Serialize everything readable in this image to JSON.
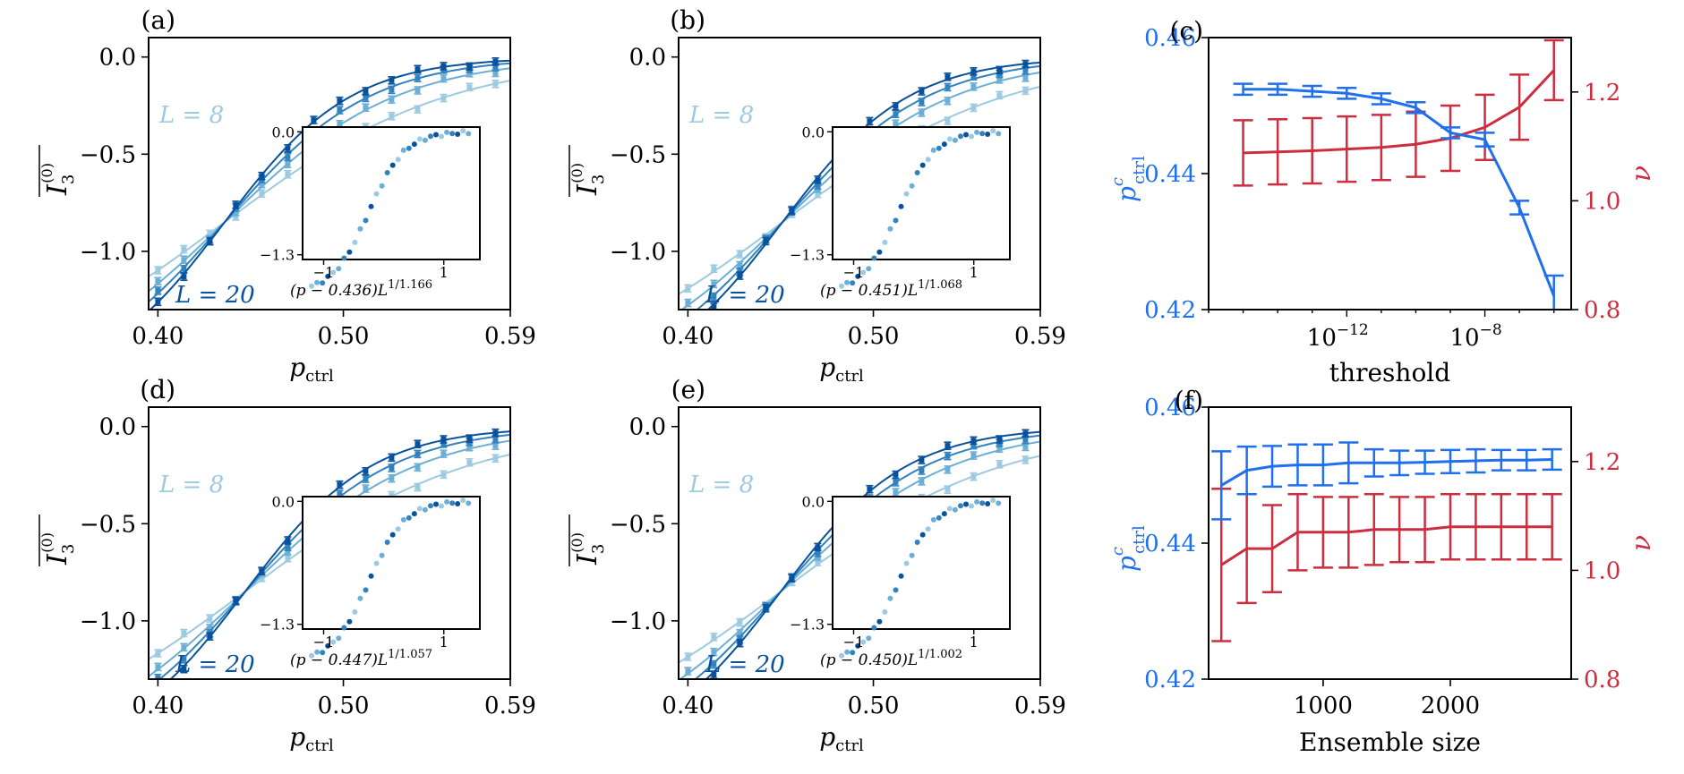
{
  "colors": {
    "L8": "#9ecae1",
    "L12": "#6baed6",
    "L16": "#3182bd",
    "L20": "#08519c",
    "pc": "#1f6fef",
    "nu": "#cc2e3f",
    "axis": "#000000"
  },
  "chart_data": [
    {
      "id": "a",
      "type": "line",
      "panel_label": "(a)",
      "xlabel": "p",
      "xlabel_sub": "ctrl",
      "ylabel": "I",
      "xlim": [
        0.395,
        0.59
      ],
      "ylim": [
        -1.3,
        0.1
      ],
      "xticks": [
        "0.40",
        "0.50",
        "0.59"
      ],
      "yticks": [
        "0.0",
        "−0.5",
        "−1.0"
      ],
      "legend": {
        "top": "L = 8",
        "bottom": "L = 20"
      },
      "inset": {
        "label_main": "(p − 0.436)L",
        "label_exp": "1/1.166",
        "yticks": [
          "0.0",
          "−1.3"
        ],
        "xticks": [
          "−1",
          "1"
        ]
      }
    },
    {
      "id": "b",
      "type": "line",
      "panel_label": "(b)",
      "xlabel": "p",
      "xlabel_sub": "ctrl",
      "ylabel": "I",
      "xlim": [
        0.395,
        0.59
      ],
      "ylim": [
        -1.3,
        0.1
      ],
      "xticks": [
        "0.40",
        "0.50",
        "0.59"
      ],
      "yticks": [
        "0.0",
        "−0.5",
        "−1.0"
      ],
      "legend": {
        "top": "L = 8",
        "bottom": "L = 20"
      },
      "inset": {
        "label_main": "(p − 0.451)L",
        "label_exp": "1/1.068",
        "yticks": [
          "0.0",
          "−1.3"
        ],
        "xticks": [
          "−1",
          "1"
        ]
      }
    },
    {
      "id": "d",
      "type": "line",
      "panel_label": "(d)",
      "xlabel": "p",
      "xlabel_sub": "ctrl",
      "ylabel": "I",
      "xlim": [
        0.395,
        0.59
      ],
      "ylim": [
        -1.3,
        0.1
      ],
      "xticks": [
        "0.40",
        "0.50",
        "0.59"
      ],
      "yticks": [
        "0.0",
        "−0.5",
        "−1.0"
      ],
      "legend": {
        "top": "L = 8",
        "bottom": "L = 20"
      },
      "inset": {
        "label_main": "(p − 0.447)L",
        "label_exp": "1/1.057",
        "yticks": [
          "0.0",
          "−1.3"
        ],
        "xticks": [
          "−1",
          "1"
        ]
      }
    },
    {
      "id": "e",
      "type": "line",
      "panel_label": "(e)",
      "xlabel": "p",
      "xlabel_sub": "ctrl",
      "ylabel": "I",
      "xlim": [
        0.395,
        0.59
      ],
      "ylim": [
        -1.3,
        0.1
      ],
      "xticks": [
        "0.40",
        "0.50",
        "0.59"
      ],
      "yticks": [
        "0.0",
        "−0.5",
        "−1.0"
      ],
      "legend": {
        "top": "L = 8",
        "bottom": "L = 20"
      },
      "inset": {
        "label_main": "(p − 0.450)L",
        "label_exp": "1/1.002",
        "yticks": [
          "0.0",
          "−1.3"
        ],
        "xticks": [
          "−1",
          "1"
        ]
      }
    },
    {
      "id": "c",
      "type": "line",
      "panel_label": "(c)",
      "xlabel": "threshold",
      "xscale": "log",
      "xlim_log10": [
        -16,
        -5.5
      ],
      "xticks": [
        {
          "exp": -12,
          "label": "10",
          "sup": "−12"
        },
        {
          "exp": -8,
          "label": "10",
          "sup": "−8"
        }
      ],
      "ylabel_left": "p",
      "ylabel_left_sup": "c",
      "ylabel_left_sub": "ctrl",
      "ylabel_right": "ν",
      "ylim_left": [
        0.42,
        0.46
      ],
      "yticks_left": [
        "0.46",
        "0.44",
        "0.42"
      ],
      "ylim_right": [
        0.8,
        1.3
      ],
      "yticks_right": [
        "1.2",
        "1.0",
        "0.8"
      ],
      "x_log10": [
        -15,
        -14,
        -13,
        -12,
        -11,
        -10,
        -9,
        -8,
        -7,
        -6
      ],
      "pc": [
        0.4524,
        0.4524,
        0.4521,
        0.4518,
        0.451,
        0.4497,
        0.446,
        0.445,
        0.435,
        0.422
      ],
      "pc_err": [
        0.0008,
        0.0008,
        0.0008,
        0.0008,
        0.0008,
        0.0008,
        0.0008,
        0.001,
        0.001,
        0.003
      ],
      "nu": [
        1.088,
        1.09,
        1.092,
        1.095,
        1.098,
        1.104,
        1.115,
        1.135,
        1.172,
        1.24
      ],
      "nu_err": [
        0.06,
        0.06,
        0.06,
        0.06,
        0.06,
        0.06,
        0.06,
        0.06,
        0.06,
        0.055
      ]
    },
    {
      "id": "f",
      "type": "line",
      "panel_label": "(f)",
      "xlabel": "Ensemble size",
      "xlim": [
        100,
        2950
      ],
      "xticks": [
        "1000",
        "2000"
      ],
      "xtick_values": [
        1000,
        2000
      ],
      "ylabel_left": "p",
      "ylabel_left_sup": "c",
      "ylabel_left_sub": "ctrl",
      "ylabel_right": "ν",
      "ylim_left": [
        0.42,
        0.46
      ],
      "yticks_left": [
        "0.46",
        "0.44",
        "0.42"
      ],
      "ylim_right": [
        0.8,
        1.3
      ],
      "yticks_right": [
        "1.2",
        "1.0",
        "0.8"
      ],
      "x": [
        200,
        400,
        600,
        800,
        1000,
        1200,
        1400,
        1600,
        1800,
        2000,
        2200,
        2400,
        2600,
        2800
      ],
      "pc": [
        0.4485,
        0.4507,
        0.4513,
        0.4515,
        0.4515,
        0.4518,
        0.4518,
        0.4518,
        0.4519,
        0.452,
        0.4521,
        0.4522,
        0.4522,
        0.4523
      ],
      "pc_err": [
        0.005,
        0.0035,
        0.003,
        0.003,
        0.003,
        0.003,
        0.002,
        0.0018,
        0.0017,
        0.0017,
        0.0017,
        0.0015,
        0.0015,
        0.0015
      ],
      "nu": [
        1.01,
        1.04,
        1.04,
        1.07,
        1.07,
        1.07,
        1.075,
        1.075,
        1.075,
        1.08,
        1.08,
        1.08,
        1.08,
        1.08
      ],
      "nu_err": [
        0.14,
        0.1,
        0.08,
        0.07,
        0.065,
        0.065,
        0.065,
        0.06,
        0.06,
        0.06,
        0.06,
        0.06,
        0.06,
        0.06
      ]
    }
  ]
}
